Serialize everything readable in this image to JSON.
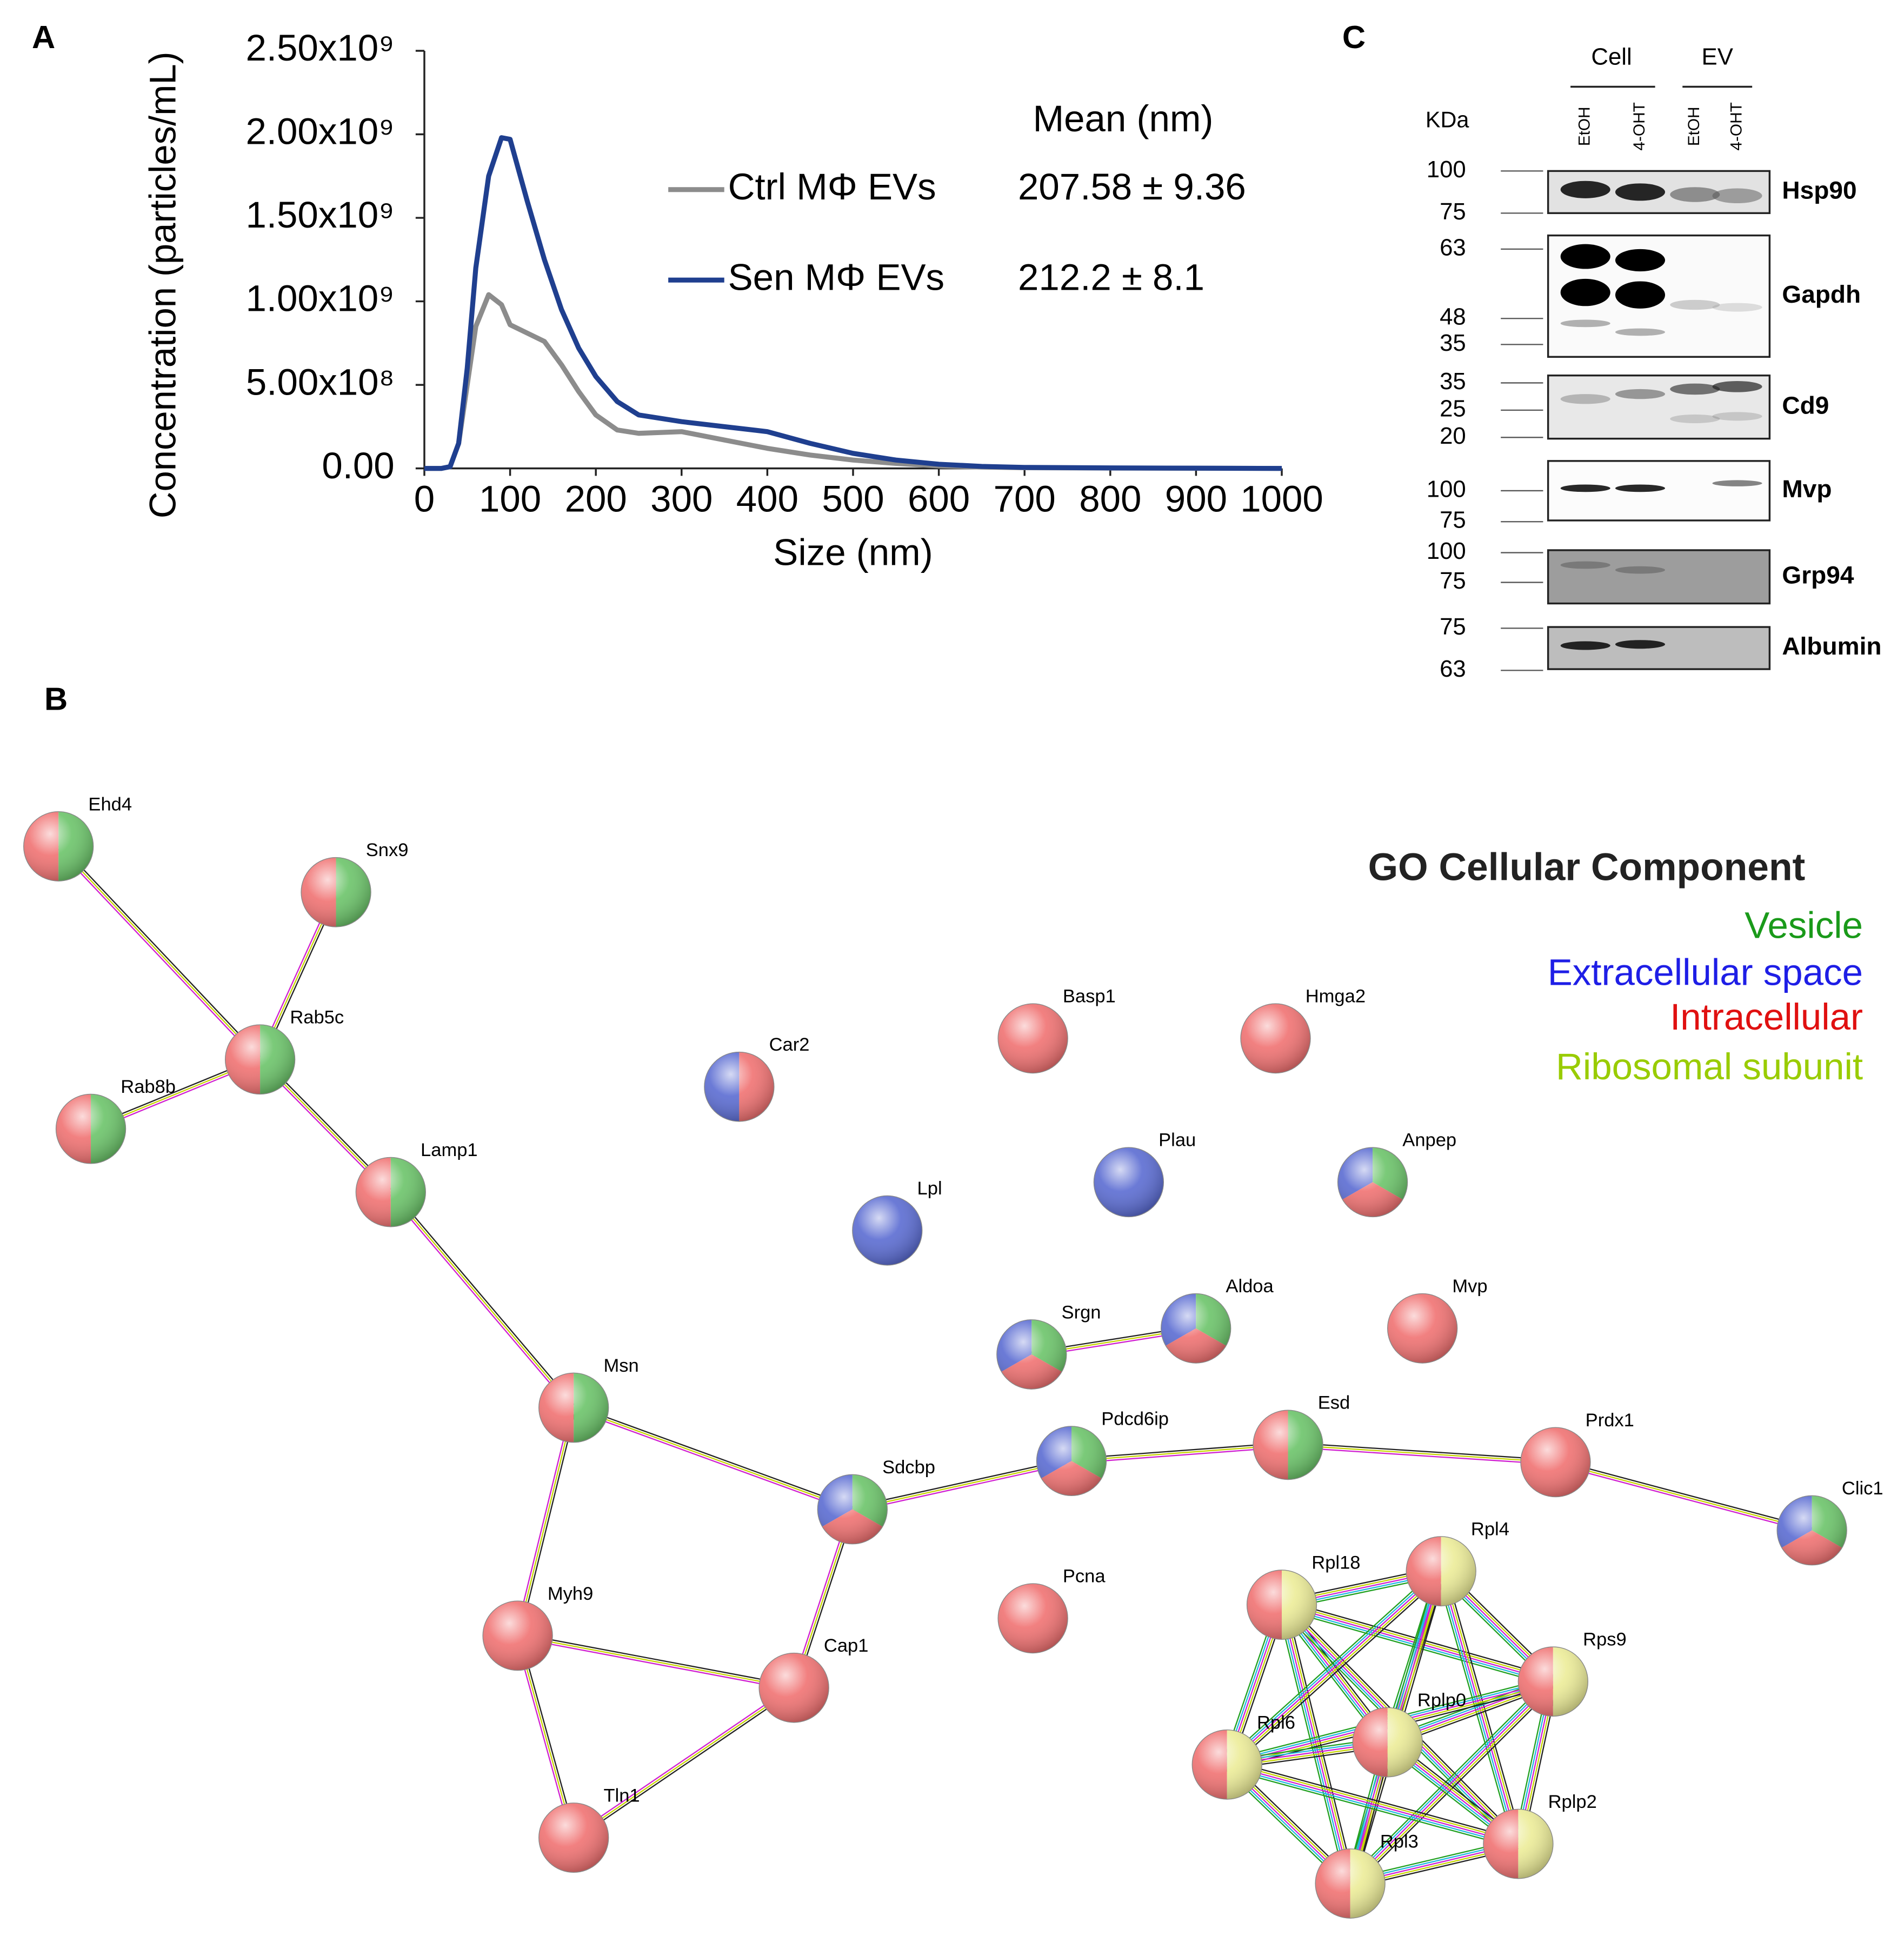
{
  "panel_labels": [
    "A",
    "B",
    "C"
  ],
  "chart_data": {
    "type": "line",
    "xlabel": "Size (nm)",
    "ylabel": "Concentration (particles/mL)",
    "legend_title": "Mean (nm)",
    "x": [
      0,
      20,
      30,
      40,
      50,
      60,
      75,
      90,
      100,
      120,
      140,
      160,
      180,
      200,
      225,
      250,
      300,
      350,
      400,
      450,
      500,
      550,
      600,
      650,
      700,
      800,
      900,
      1000
    ],
    "series": [
      {
        "name": "Ctrl MΦ EVs",
        "mean": "207.58 ± 9.36",
        "color": "#8c8c8c",
        "values": [
          0,
          0,
          10000000,
          150000000,
          500000000,
          850000000,
          1040000000,
          980000000,
          860000000,
          810000000,
          760000000,
          620000000,
          460000000,
          320000000,
          230000000,
          210000000,
          220000000,
          170000000,
          120000000,
          80000000,
          50000000,
          30000000,
          15000000,
          8000000,
          4000000,
          2000000,
          1000000,
          0
        ]
      },
      {
        "name": "Sen MΦ EVs",
        "mean": "212.2 ± 8.1",
        "color": "#1f3f8f",
        "values": [
          0,
          0,
          10000000,
          150000000,
          600000000,
          1200000000,
          1750000000,
          1980000000,
          1970000000,
          1600000000,
          1250000000,
          950000000,
          720000000,
          550000000,
          400000000,
          320000000,
          280000000,
          250000000,
          220000000,
          150000000,
          90000000,
          50000000,
          25000000,
          12000000,
          6000000,
          3000000,
          1500000,
          0
        ]
      }
    ],
    "xlim": [
      0,
      1000
    ],
    "xticks": [
      0,
      100,
      200,
      300,
      400,
      500,
      600,
      700,
      800,
      900,
      1000
    ],
    "ylim": [
      0,
      2500000000
    ],
    "yticks": [
      {
        "value": 0,
        "label": "0.00"
      },
      {
        "value": 500000000,
        "label": "5.00x10⁸"
      },
      {
        "value": 1000000000,
        "label": "1.00x10⁹"
      },
      {
        "value": 1500000000,
        "label": "1.50x10⁹"
      },
      {
        "value": 2000000000,
        "label": "2.00x10⁹"
      },
      {
        "value": 2500000000,
        "label": "2.50x10⁹"
      }
    ]
  },
  "blot": {
    "kda_title": "KDa",
    "groups": [
      "Cell",
      "EV"
    ],
    "lanes": [
      "EtOH",
      "4-OHT",
      "EtOH",
      "4-OHT"
    ],
    "rows": [
      {
        "protein": "Hsp90",
        "markers": [
          100,
          75
        ]
      },
      {
        "protein": "Gapdh",
        "markers": [
          63,
          48,
          35
        ]
      },
      {
        "protein": "Cd9",
        "markers": [
          35,
          25,
          20
        ]
      },
      {
        "protein": "Mvp",
        "markers": [
          100,
          75
        ]
      },
      {
        "protein": "Grp94",
        "markers": [
          100,
          75
        ]
      },
      {
        "protein": "Albumin",
        "markers": [
          75,
          63
        ]
      }
    ]
  },
  "network": {
    "legend_title": "GO Cellular Component",
    "legend": [
      {
        "name": "Vesicle",
        "color": "#1a9a1a",
        "node_color": "#6cc46a"
      },
      {
        "name": "Extracellular space",
        "color": "#1e1ee6",
        "node_color": "#5b6cd2"
      },
      {
        "name": "Intracellular",
        "color": "#e01010",
        "node_color": "#f07272"
      },
      {
        "name": "Ribosomal subunit",
        "color": "#99cc00",
        "node_color": "#ecec98"
      }
    ],
    "nodes": [
      {
        "label": "Ehd4",
        "parts": [
          2,
          0
        ]
      },
      {
        "label": "Snx9",
        "parts": [
          2,
          0
        ]
      },
      {
        "label": "Rab5c",
        "parts": [
          2,
          0
        ]
      },
      {
        "label": "Rab8b",
        "parts": [
          2,
          0
        ]
      },
      {
        "label": "Lamp1",
        "parts": [
          2,
          0
        ]
      },
      {
        "label": "Car2",
        "parts": [
          1,
          2
        ]
      },
      {
        "label": "Basp1",
        "parts": [
          2
        ]
      },
      {
        "label": "Hmga2",
        "parts": [
          2
        ]
      },
      {
        "label": "Plau",
        "parts": [
          1
        ]
      },
      {
        "label": "Anpep",
        "parts": [
          1,
          0,
          2
        ]
      },
      {
        "label": "Lpl",
        "parts": [
          1
        ]
      },
      {
        "label": "Srgn",
        "parts": [
          1,
          0,
          2
        ]
      },
      {
        "label": "Aldoa",
        "parts": [
          1,
          0,
          2
        ]
      },
      {
        "label": "Mvp",
        "parts": [
          2
        ]
      },
      {
        "label": "Msn",
        "parts": [
          2,
          0
        ]
      },
      {
        "label": "Sdcbp",
        "parts": [
          1,
          0,
          2
        ]
      },
      {
        "label": "Pdcd6ip",
        "parts": [
          1,
          0,
          2
        ]
      },
      {
        "label": "Esd",
        "parts": [
          2,
          0
        ]
      },
      {
        "label": "Prdx1",
        "parts": [
          2
        ]
      },
      {
        "label": "Clic1",
        "parts": [
          1,
          0,
          2
        ]
      },
      {
        "label": "Myh9",
        "parts": [
          2
        ]
      },
      {
        "label": "Pcna",
        "parts": [
          2
        ]
      },
      {
        "label": "Cap1",
        "parts": [
          2
        ]
      },
      {
        "label": "Tln1",
        "parts": [
          2
        ]
      },
      {
        "label": "Rpl18",
        "parts": [
          2,
          3
        ]
      },
      {
        "label": "Rpl4",
        "parts": [
          2,
          3
        ]
      },
      {
        "label": "Rps9",
        "parts": [
          2,
          3
        ]
      },
      {
        "label": "Rplp0",
        "parts": [
          2,
          3
        ]
      },
      {
        "label": "Rpl6",
        "parts": [
          2,
          3
        ]
      },
      {
        "label": "Rplp2",
        "parts": [
          2,
          3
        ]
      },
      {
        "label": "Rpl3",
        "parts": [
          2,
          3
        ]
      }
    ],
    "edges": [
      [
        0,
        2
      ],
      [
        1,
        2
      ],
      [
        3,
        2
      ],
      [
        2,
        4
      ],
      [
        4,
        14
      ],
      [
        14,
        15
      ],
      [
        14,
        20
      ],
      [
        15,
        22
      ],
      [
        15,
        16
      ],
      [
        16,
        17
      ],
      [
        17,
        18
      ],
      [
        18,
        19
      ],
      [
        20,
        22
      ],
      [
        20,
        23
      ],
      [
        22,
        23
      ],
      [
        11,
        12
      ],
      [
        24,
        25
      ],
      [
        24,
        26
      ],
      [
        24,
        27
      ],
      [
        24,
        28
      ],
      [
        24,
        29
      ],
      [
        24,
        30
      ],
      [
        25,
        26
      ],
      [
        25,
        27
      ],
      [
        25,
        28
      ],
      [
        25,
        29
      ],
      [
        25,
        30
      ],
      [
        26,
        27
      ],
      [
        26,
        28
      ],
      [
        26,
        29
      ],
      [
        26,
        30
      ],
      [
        27,
        28
      ],
      [
        27,
        29
      ],
      [
        27,
        30
      ],
      [
        28,
        29
      ],
      [
        28,
        30
      ],
      [
        29,
        30
      ]
    ]
  }
}
